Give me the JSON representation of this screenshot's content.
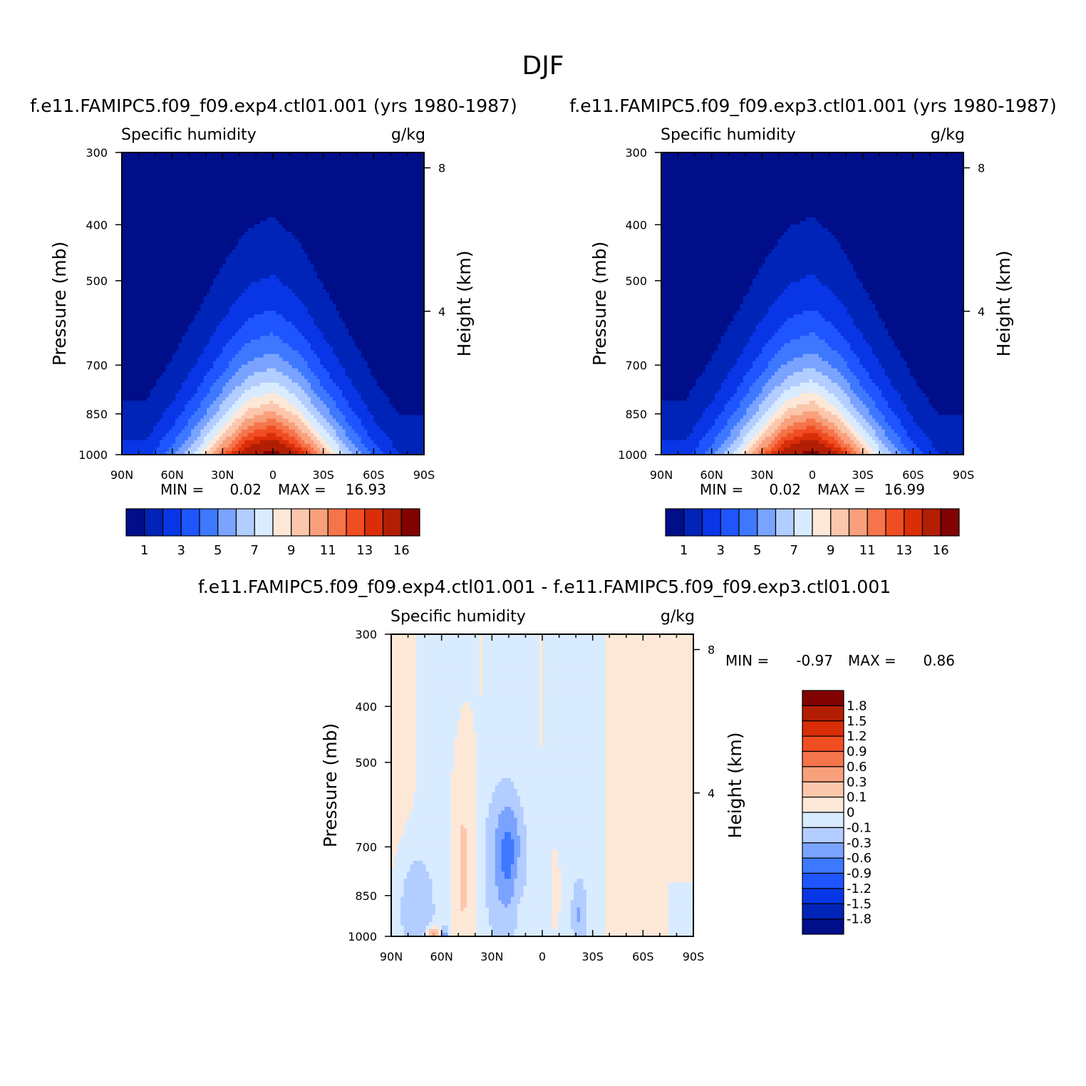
{
  "figure": {
    "title": "DJF"
  },
  "colors": {
    "abs_levels": [
      "#000e8a",
      "#0024b8",
      "#0836e6",
      "#1e55ff",
      "#3d78ff",
      "#7aa3ff",
      "#b2cdff",
      "#d9ebff",
      "#fde8d8",
      "#fbc6ac",
      "#f8a07b",
      "#f6744b",
      "#f14d22",
      "#d92e08",
      "#b21e04",
      "#820202"
    ],
    "diff_levels": [
      "#000e8a",
      "#0024b8",
      "#0836e6",
      "#1e55ff",
      "#3d78ff",
      "#7aa3ff",
      "#b2cdff",
      "#d9ebff",
      "#fde8d8",
      "#fbc6ac",
      "#f8a07b",
      "#f6744b",
      "#f14d22",
      "#d92e08",
      "#b21e04",
      "#820202"
    ]
  },
  "panels": [
    {
      "title": "f.e11.FAMIPC5.f09_f09.exp4.ctl01.001 (yrs 1980-1987)",
      "left_label": "Specific humidity",
      "right_label": "g/kg",
      "ylabel": "Pressure (mb)",
      "ylabel_right": "Height (km)",
      "min_label": "MIN =",
      "min_value": "0.02",
      "max_label": "MAX =",
      "max_value": "16.93",
      "colorbar_ticks": [
        "1",
        "3",
        "5",
        "7",
        "9",
        "11",
        "13",
        "16"
      ]
    },
    {
      "title": "f.e11.FAMIPC5.f09_f09.exp3.ctl01.001 (yrs 1980-1987)",
      "left_label": "Specific humidity",
      "right_label": "g/kg",
      "ylabel": "Pressure (mb)",
      "ylabel_right": "Height (km)",
      "min_label": "MIN =",
      "min_value": "0.02",
      "max_label": "MAX =",
      "max_value": "16.99",
      "colorbar_ticks": [
        "1",
        "3",
        "5",
        "7",
        "9",
        "11",
        "13",
        "16"
      ]
    },
    {
      "title": "f.e11.FAMIPC5.f09_f09.exp4.ctl01.001 - f.e11.FAMIPC5.f09_f09.exp3.ctl01.001",
      "left_label": "Specific humidity",
      "right_label": "g/kg",
      "ylabel": "Pressure (mb)",
      "ylabel_right": "Height (km)",
      "min_label": "MIN =",
      "min_value": "-0.97",
      "max_label": "MAX =",
      "max_value": "0.86",
      "colorbar_ticks": [
        "1.8",
        "1.5",
        "1.2",
        "0.9",
        "0.6",
        "0.3",
        "0.1",
        "0",
        "-0.1",
        "-0.3",
        "-0.6",
        "-0.9",
        "-1.2",
        "-1.5",
        "-1.8"
      ]
    }
  ],
  "chart_data": [
    {
      "type": "heatmap",
      "title": "f.e11.FAMIPC5.f09_f09.exp4.ctl01.001 (yrs 1980-1987)",
      "variable": "Specific humidity",
      "units": "g/kg",
      "ylabel": "Pressure (mb)",
      "ylabel_right": "Height (km)",
      "x_ticks": [
        "90N",
        "60N",
        "30N",
        "0",
        "30S",
        "60S",
        "90S"
      ],
      "x_range": [
        90,
        -90
      ],
      "y_ticks": [
        300,
        400,
        500,
        700,
        850,
        1000
      ],
      "y_range": [
        1000,
        300
      ],
      "y_scale": "log",
      "height_ticks_km": [
        4,
        8
      ],
      "levels": [
        1,
        2,
        3,
        4,
        5,
        6,
        7,
        8,
        9,
        10,
        11,
        12,
        13,
        14,
        16
      ],
      "min": 0.02,
      "max": 16.93,
      "peak_latitude": 0,
      "profile_lat": [
        -75,
        -60,
        -45,
        -30,
        -15,
        0,
        15,
        30,
        45,
        60,
        75
      ],
      "profile_surface_gkg": [
        2.0,
        3.6,
        6.4,
        10.0,
        14.2,
        16.9,
        15.5,
        11.6,
        7.6,
        4.6,
        2.6
      ],
      "profile_scale_height_km": [
        1.55,
        1.65,
        1.85,
        2.05,
        2.25,
        2.35,
        2.3,
        2.15,
        1.95,
        1.75,
        1.6
      ]
    },
    {
      "type": "heatmap",
      "title": "f.e11.FAMIPC5.f09_f09.exp3.ctl01.001 (yrs 1980-1987)",
      "variable": "Specific humidity",
      "units": "g/kg",
      "ylabel": "Pressure (mb)",
      "ylabel_right": "Height (km)",
      "x_ticks": [
        "90N",
        "60N",
        "30N",
        "0",
        "30S",
        "60S",
        "90S"
      ],
      "x_range": [
        90,
        -90
      ],
      "y_ticks": [
        300,
        400,
        500,
        700,
        850,
        1000
      ],
      "y_range": [
        1000,
        300
      ],
      "y_scale": "log",
      "height_ticks_km": [
        4,
        8
      ],
      "levels": [
        1,
        2,
        3,
        4,
        5,
        6,
        7,
        8,
        9,
        10,
        11,
        12,
        13,
        14,
        16
      ],
      "min": 0.02,
      "max": 16.99,
      "peak_latitude": 0,
      "profile_lat": [
        -75,
        -60,
        -45,
        -30,
        -15,
        0,
        15,
        30,
        45,
        60,
        75
      ],
      "profile_surface_gkg": [
        2.0,
        3.6,
        6.4,
        10.0,
        14.2,
        17.0,
        15.5,
        11.6,
        7.6,
        4.6,
        2.6
      ],
      "profile_scale_height_km": [
        1.55,
        1.65,
        1.85,
        2.05,
        2.25,
        2.35,
        2.3,
        2.15,
        1.95,
        1.75,
        1.6
      ]
    },
    {
      "type": "heatmap",
      "title": "f.e11.FAMIPC5.f09_f09.exp4.ctl01.001 - f.e11.FAMIPC5.f09_f09.exp3.ctl01.001",
      "variable": "Specific humidity",
      "units": "g/kg",
      "ylabel": "Pressure (mb)",
      "ylabel_right": "Height (km)",
      "x_ticks": [
        "90N",
        "60N",
        "30N",
        "0",
        "30S",
        "60S",
        "90S"
      ],
      "x_range": [
        90,
        -90
      ],
      "y_ticks": [
        300,
        400,
        500,
        700,
        850,
        1000
      ],
      "y_range": [
        1000,
        300
      ],
      "y_scale": "log",
      "height_ticks_km": [
        4,
        8
      ],
      "levels": [
        -1.8,
        -1.5,
        -1.2,
        -0.9,
        -0.6,
        -0.3,
        -0.1,
        0,
        0.1,
        0.3,
        0.6,
        0.9,
        1.2,
        1.5,
        1.8
      ],
      "min": -0.97,
      "max": 0.86,
      "features": [
        {
          "lat_center": 20,
          "p_center": 720,
          "lat_width": 7,
          "p_width_km": 1.2,
          "value": -0.55
        },
        {
          "lat_center": 23,
          "p_center": 760,
          "lat_width": 12,
          "p_width_km": 2.6,
          "value": -0.25
        },
        {
          "lat_center": -22,
          "p_center": 920,
          "lat_width": 4,
          "p_width_km": 0.9,
          "value": -0.3
        },
        {
          "lat_center": 75,
          "p_center": 900,
          "lat_width": 10,
          "p_width_km": 1.4,
          "value": -0.25
        },
        {
          "lat_center": 47,
          "p_center": 760,
          "lat_width": 6,
          "p_width_km": 3.0,
          "value": 0.14
        },
        {
          "lat_center": 15,
          "p_center": 790,
          "lat_width": 3,
          "p_width_km": 1.0,
          "value": 0.14
        },
        {
          "lat_center": -8,
          "p_center": 830,
          "lat_width": 2,
          "p_width_km": 0.8,
          "value": 0.11
        },
        {
          "lat_center": 65,
          "p_center": 995,
          "lat_width": 4,
          "p_width_km": 0.2,
          "value": 0.45
        },
        {
          "lat_center": 58,
          "p_center": 995,
          "lat_width": 2,
          "p_width_km": 0.2,
          "value": -0.45
        }
      ]
    }
  ]
}
